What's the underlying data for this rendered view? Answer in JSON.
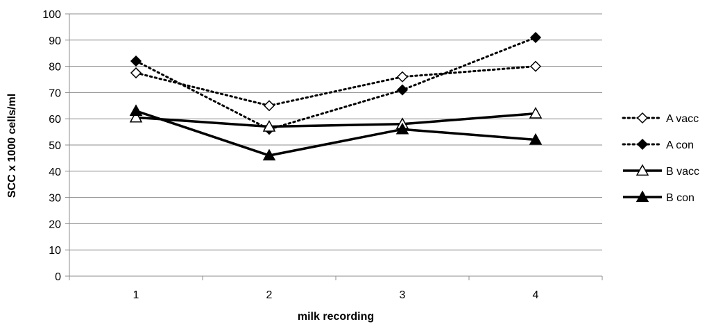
{
  "chart_data": {
    "type": "line",
    "title": "",
    "xlabel": "milk recording",
    "ylabel": "SCC x 1000 cells/ml",
    "categories": [
      "1",
      "2",
      "3",
      "4"
    ],
    "ylim": [
      0,
      100
    ],
    "yticks": [
      0,
      10,
      20,
      30,
      40,
      50,
      60,
      70,
      80,
      90,
      100
    ],
    "grid": "horizontal",
    "legend_position": "right",
    "series": [
      {
        "name": "A vacc",
        "values": [
          77.5,
          65,
          76,
          80
        ],
        "line": "dotted",
        "marker": "diamond-open",
        "color": "#000000"
      },
      {
        "name": "A con",
        "values": [
          82,
          56,
          71,
          91
        ],
        "line": "dotted",
        "marker": "diamond-filled",
        "color": "#000000"
      },
      {
        "name": "B vacc",
        "values": [
          60.5,
          57,
          58,
          62
        ],
        "line": "solid",
        "marker": "triangle-open",
        "color": "#000000"
      },
      {
        "name": "B con",
        "values": [
          63,
          46,
          56,
          52
        ],
        "line": "solid",
        "marker": "triangle-filled",
        "color": "#000000"
      }
    ]
  }
}
